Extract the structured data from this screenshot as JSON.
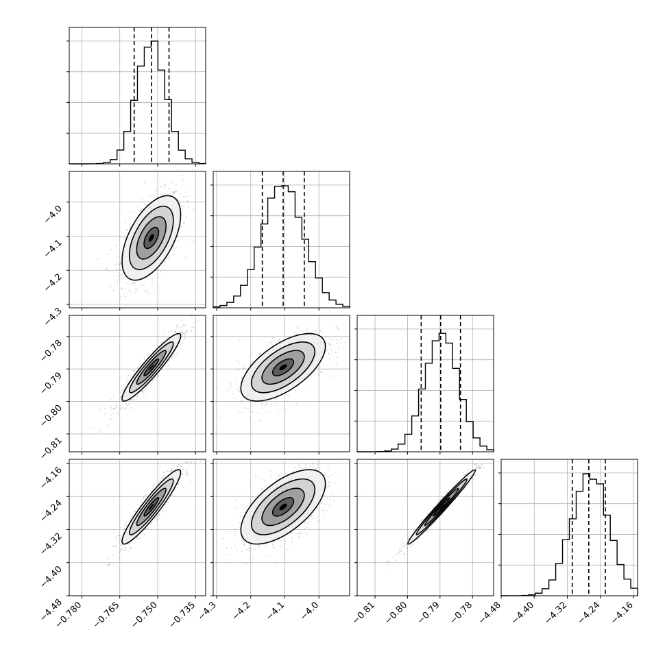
{
  "chart_data": {
    "type": "corner",
    "parameters": [
      {
        "range": [
          -0.785,
          -0.731
        ],
        "ticks": [
          -0.78,
          -0.765,
          -0.75,
          -0.735
        ],
        "tick_labels": [
          "−0.780",
          "−0.765",
          "−0.750",
          "−0.735"
        ],
        "mean": -0.7525,
        "sigma": 0.0058,
        "quantiles": [
          -0.7593,
          -0.7524,
          -0.7455
        ],
        "hist_peak": 1.0
      },
      {
        "range": [
          -4.31,
          -3.91
        ],
        "ticks": [
          -4.3,
          -4.2,
          -4.1,
          -4.0
        ],
        "tick_labels": [
          "−4.3",
          "−4.2",
          "−4.1",
          "−4.0"
        ],
        "mean": -4.105,
        "sigma": 0.062,
        "quantiles": [
          -4.166,
          -4.105,
          -4.043
        ],
        "hist_peak": 1.0
      },
      {
        "range": [
          -0.8155,
          -0.7735
        ],
        "ticks": [
          -0.81,
          -0.8,
          -0.79,
          -0.78
        ],
        "tick_labels": [
          "−0.81",
          "−0.80",
          "−0.79",
          "−0.78"
        ],
        "mean": -0.7895,
        "sigma": 0.0052,
        "quantiles": [
          -0.7958,
          -0.7898,
          -0.7837
        ],
        "hist_peak": 1.0
      },
      {
        "range": [
          -4.48,
          -4.15
        ],
        "ticks": [
          -4.48,
          -4.4,
          -4.32,
          -4.24,
          -4.16
        ],
        "tick_labels": [
          "−4.48",
          "−4.40",
          "−4.32",
          "−4.24",
          "−4.16"
        ],
        "mean": -4.265,
        "sigma": 0.045,
        "quantiles": [
          -4.308,
          -4.268,
          -4.228
        ],
        "hist_peak": 1.0
      }
    ],
    "correlations": [
      [
        1.0,
        0.55,
        0.93,
        0.93
      ],
      [
        0.55,
        1.0,
        0.62,
        0.62
      ],
      [
        0.93,
        0.62,
        1.0,
        0.985
      ],
      [
        0.93,
        0.62,
        0.985,
        1.0
      ]
    ],
    "contour_levels_sigma": [
      0.5,
      1.0,
      1.5,
      2.0
    ],
    "histogram_bins": 20,
    "grid": true,
    "colors": {
      "line": "#000000",
      "grid": "#b0b0b0",
      "points": "#808080"
    }
  }
}
